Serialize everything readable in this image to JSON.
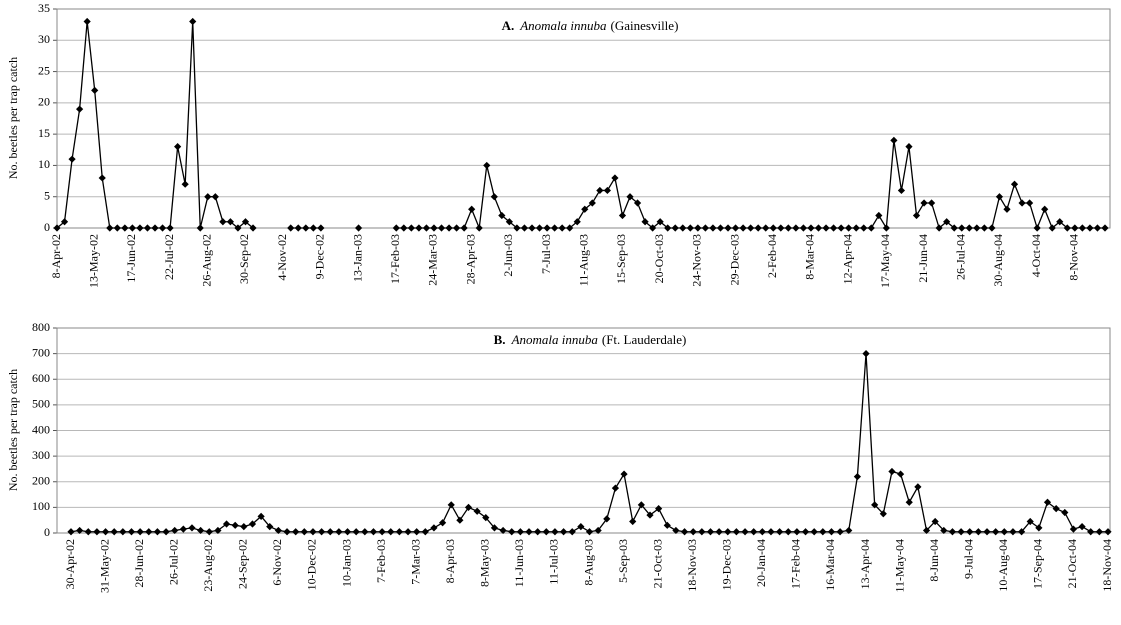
{
  "chart_data": [
    {
      "type": "line",
      "title": {
        "label": "A.",
        "species": "Anomala innuba",
        "site": "(Gainesville)"
      },
      "y_label": "No. beetles per trap catch",
      "color": "#000000",
      "ylim": [
        0,
        35
      ],
      "yticks": [
        0,
        5,
        10,
        15,
        20,
        25,
        30,
        35
      ],
      "grid": true,
      "categories": [
        "8-Apr-02",
        null,
        null,
        null,
        null,
        "13-May-02",
        null,
        null,
        null,
        null,
        "17-Jun-02",
        null,
        null,
        null,
        null,
        "22-Jul-02",
        null,
        null,
        null,
        null,
        "26-Aug-02",
        null,
        null,
        null,
        null,
        "30-Sep-02",
        null,
        null,
        null,
        null,
        "4-Nov-02",
        null,
        null,
        null,
        null,
        "9-Dec-02",
        null,
        null,
        null,
        null,
        "13-Jan-03",
        null,
        null,
        null,
        null,
        "17-Feb-03",
        null,
        null,
        null,
        null,
        "24-Mar-03",
        null,
        null,
        null,
        null,
        "28-Apr-03",
        null,
        null,
        null,
        null,
        "2-Jun-03",
        null,
        null,
        null,
        null,
        "7-Jul-03",
        null,
        null,
        null,
        null,
        "11-Aug-03",
        null,
        null,
        null,
        null,
        "15-Sep-03",
        null,
        null,
        null,
        null,
        "20-Oct-03",
        null,
        null,
        null,
        null,
        "24-Nov-03",
        null,
        null,
        null,
        null,
        "29-Dec-03",
        null,
        null,
        null,
        null,
        "2-Feb-04",
        null,
        null,
        null,
        null,
        "8-Mar-04",
        null,
        null,
        null,
        null,
        "12-Apr-04",
        null,
        null,
        null,
        null,
        "17-May-04",
        null,
        null,
        null,
        null,
        "21-Jun-04",
        null,
        null,
        null,
        null,
        "26-Jul-04",
        null,
        null,
        null,
        null,
        "30-Aug-04",
        null,
        null,
        null,
        null,
        "4-Oct-04",
        null,
        null,
        null,
        null,
        "8-Nov-04",
        null,
        null,
        null,
        null
      ],
      "values": [
        0,
        1,
        11,
        19,
        33,
        22,
        8,
        0,
        0,
        0,
        0,
        0,
        0,
        0,
        0,
        0,
        13,
        7,
        33,
        0,
        5,
        5,
        1,
        1,
        0,
        1,
        0,
        null,
        null,
        null,
        null,
        0,
        0,
        0,
        0,
        0,
        null,
        null,
        null,
        null,
        0,
        null,
        null,
        null,
        null,
        0,
        0,
        0,
        0,
        0,
        0,
        0,
        0,
        0,
        0,
        3,
        0,
        10,
        5,
        2,
        1,
        0,
        0,
        0,
        0,
        0,
        0,
        0,
        0,
        1,
        3,
        4,
        6,
        6,
        8,
        2,
        5,
        4,
        1,
        0,
        1,
        0,
        0,
        0,
        0,
        0,
        0,
        0,
        0,
        0,
        0,
        0,
        0,
        0,
        0,
        0,
        0,
        0,
        0,
        0,
        0,
        0,
        0,
        0,
        0,
        0,
        0,
        0,
        0,
        2,
        0,
        14,
        6,
        13,
        2,
        4,
        4,
        0,
        1,
        0,
        0,
        0,
        0,
        0,
        0,
        5,
        3,
        7,
        4,
        4,
        0,
        3,
        0,
        1,
        0,
        0,
        0,
        0,
        0,
        0
      ]
    },
    {
      "type": "line",
      "title": {
        "label": "B.",
        "species": "Anomala innuba",
        "site": "(Ft. Lauderdale)"
      },
      "y_label": "No. beetles per trap catch",
      "color": "#000000",
      "ylim": [
        0,
        800
      ],
      "yticks": [
        0,
        100,
        200,
        300,
        400,
        500,
        600,
        700,
        800
      ],
      "grid": true,
      "categories": [
        "30-Apr-02",
        null,
        null,
        null,
        "31-May-02",
        null,
        null,
        null,
        "28-Jun-02",
        null,
        null,
        null,
        "26-Jul-02",
        null,
        null,
        null,
        "23-Aug-02",
        null,
        null,
        null,
        "24-Sep-02",
        null,
        null,
        null,
        "6-Nov-02",
        null,
        null,
        null,
        "10-Dec-02",
        null,
        null,
        null,
        "10-Jan-03",
        null,
        null,
        null,
        "7-Feb-03",
        null,
        null,
        null,
        "7-Mar-03",
        null,
        null,
        null,
        "8-Apr-03",
        null,
        null,
        null,
        "8-May-03",
        null,
        null,
        null,
        "11-Jun-03",
        null,
        null,
        null,
        "11-Jul-03",
        null,
        null,
        null,
        "8-Aug-03",
        null,
        null,
        null,
        "5-Sep-03",
        null,
        null,
        null,
        "21-Oct-03",
        null,
        null,
        null,
        "18-Nov-03",
        null,
        null,
        null,
        "19-Dec-03",
        null,
        null,
        null,
        "20-Jan-04",
        null,
        null,
        null,
        "17-Feb-04",
        null,
        null,
        null,
        "16-Mar-04",
        null,
        null,
        null,
        "13-Apr-04",
        null,
        null,
        null,
        "11-May-04",
        null,
        null,
        null,
        "8-Jun-04",
        null,
        null,
        null,
        "9-Jul-04",
        null,
        null,
        null,
        "10-Aug-04",
        null,
        null,
        null,
        "17-Sep-04",
        null,
        null,
        null,
        "21-Oct-04",
        null,
        null,
        null,
        "18-Nov-04"
      ],
      "values": [
        5,
        10,
        5,
        5,
        5,
        5,
        5,
        5,
        5,
        5,
        5,
        5,
        10,
        15,
        20,
        10,
        5,
        10,
        35,
        30,
        25,
        35,
        65,
        25,
        10,
        5,
        5,
        5,
        5,
        5,
        5,
        5,
        5,
        5,
        5,
        5,
        5,
        5,
        5,
        5,
        5,
        5,
        20,
        40,
        110,
        50,
        100,
        85,
        60,
        20,
        10,
        5,
        5,
        5,
        5,
        5,
        5,
        5,
        5,
        25,
        5,
        10,
        55,
        175,
        230,
        45,
        110,
        70,
        95,
        30,
        10,
        5,
        5,
        5,
        5,
        5,
        5,
        5,
        5,
        5,
        5,
        5,
        5,
        5,
        5,
        5,
        5,
        5,
        5,
        5,
        10,
        220,
        700,
        110,
        75,
        240,
        230,
        120,
        180,
        10,
        45,
        10,
        5,
        5,
        5,
        5,
        5,
        5,
        5,
        5,
        5,
        45,
        20,
        120,
        95,
        80,
        15,
        25,
        5,
        5,
        5
      ]
    }
  ]
}
